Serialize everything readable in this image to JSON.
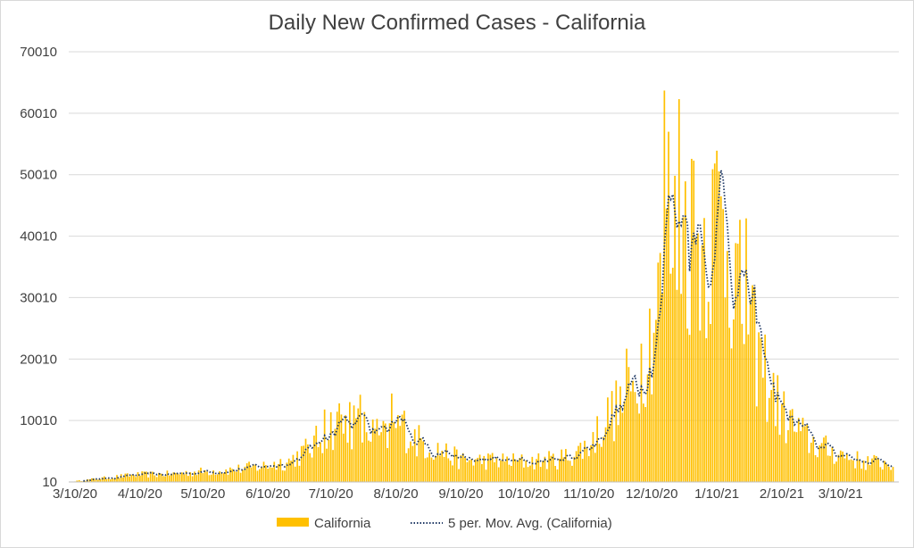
{
  "chart_data": {
    "type": "bar",
    "title": "Daily New Confirmed Cases - California",
    "xlabel": "",
    "ylabel": "",
    "ylim": [
      10,
      70010
    ],
    "y_ticks": [
      "10",
      "10010",
      "20010",
      "30010",
      "40010",
      "50010",
      "60010",
      "70010"
    ],
    "x_ticks": [
      "3/10/20",
      "4/10/20",
      "5/10/20",
      "6/10/20",
      "7/10/20",
      "8/10/20",
      "9/10/20",
      "10/10/20",
      "11/10/20",
      "12/10/20",
      "1/10/21",
      "2/10/21",
      "3/10/21"
    ],
    "x_range": [
      "2020-03-10",
      "2021-04-04"
    ],
    "grid": true,
    "legend_position": "bottom",
    "colors": {
      "bars": "#ffc000",
      "moving_average": "#1f3864",
      "grid": "#d9d9d9",
      "text": "#404040"
    },
    "anchor_points": [
      [
        "2020-03-10",
        150
      ],
      [
        "2020-03-20",
        500
      ],
      [
        "2020-03-31",
        900
      ],
      [
        "2020-04-10",
        1200
      ],
      [
        "2020-04-25",
        1300
      ],
      [
        "2020-05-10",
        1700
      ],
      [
        "2020-05-25",
        2000
      ],
      [
        "2020-06-10",
        2700
      ],
      [
        "2020-06-20",
        3400
      ],
      [
        "2020-06-30",
        5500
      ],
      [
        "2020-07-05",
        7000
      ],
      [
        "2020-07-10",
        9000
      ],
      [
        "2020-07-20",
        9300
      ],
      [
        "2020-07-28",
        8200
      ],
      [
        "2020-08-05",
        7000
      ],
      [
        "2020-08-12",
        9500
      ],
      [
        "2020-08-20",
        6800
      ],
      [
        "2020-09-01",
        5000
      ],
      [
        "2020-09-10",
        3500
      ],
      [
        "2020-09-25",
        3500
      ],
      [
        "2020-10-10",
        3300
      ],
      [
        "2020-10-25",
        3600
      ],
      [
        "2020-11-01",
        4300
      ],
      [
        "2020-11-10",
        6000
      ],
      [
        "2020-11-20",
        11000
      ],
      [
        "2020-11-30",
        13500
      ],
      [
        "2020-12-05",
        20000
      ],
      [
        "2020-12-10",
        25000
      ],
      [
        "2020-12-15",
        32000
      ],
      [
        "2020-12-20",
        38000
      ],
      [
        "2020-12-25",
        42000
      ],
      [
        "2020-12-31",
        39000
      ],
      [
        "2021-01-05",
        40000
      ],
      [
        "2021-01-10",
        43000
      ],
      [
        "2021-01-15",
        40000
      ],
      [
        "2021-01-22",
        28000
      ],
      [
        "2021-01-28",
        22000
      ],
      [
        "2021-02-04",
        16000
      ],
      [
        "2021-02-10",
        11000
      ],
      [
        "2021-02-20",
        7500
      ],
      [
        "2021-03-01",
        5500
      ],
      [
        "2021-03-10",
        4600
      ],
      [
        "2021-03-20",
        3300
      ],
      [
        "2021-04-04",
        3000
      ]
    ],
    "spikes": [
      [
        "2020-07-07",
        11800
      ],
      [
        "2020-07-14",
        12800
      ],
      [
        "2020-07-19",
        13000
      ],
      [
        "2020-07-24",
        14200
      ],
      [
        "2020-08-08",
        14400
      ],
      [
        "2020-11-28",
        21700
      ],
      [
        "2020-12-13",
        35700
      ],
      [
        "2020-12-16",
        63700
      ],
      [
        "2020-12-18",
        57000
      ],
      [
        "2020-12-23",
        62300
      ],
      [
        "2020-12-30",
        52300
      ],
      [
        "2021-01-08",
        50900
      ],
      [
        "2021-01-24",
        42900
      ]
    ],
    "series": [
      {
        "name": "California"
      },
      {
        "name": "5 per. Mov. Avg. (California)"
      }
    ]
  }
}
